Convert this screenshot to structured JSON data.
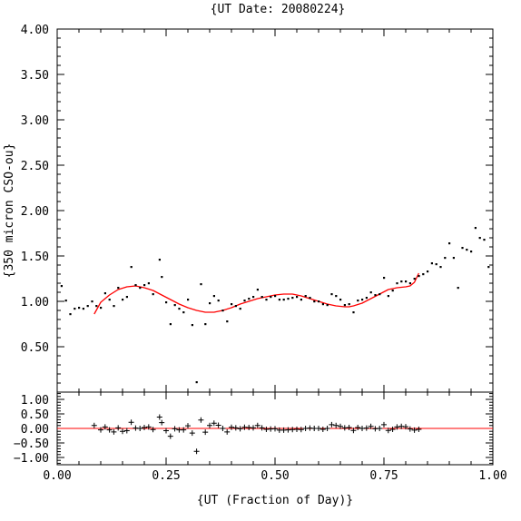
{
  "chart_data": [
    {
      "type": "scatter",
      "title": "{UT Date: 20080224}",
      "ylabel": "{350 micron CSO-ou}",
      "xlim": [
        0.0,
        1.0
      ],
      "ylim": [
        0.0,
        4.0
      ],
      "yticks": [
        "0.50",
        "1.00",
        "1.50",
        "2.00",
        "2.50",
        "3.00",
        "3.50",
        "4.00"
      ],
      "grid": false,
      "series": [
        {
          "kind": "points",
          "color": "#000000",
          "x": [
            0.01,
            0.02,
            0.03,
            0.04,
            0.05,
            0.06,
            0.07,
            0.08,
            0.09,
            0.1,
            0.11,
            0.12,
            0.13,
            0.14,
            0.15,
            0.16,
            0.17,
            0.18,
            0.19,
            0.2,
            0.21,
            0.22,
            0.235,
            0.24,
            0.25,
            0.26,
            0.27,
            0.28,
            0.29,
            0.3,
            0.31,
            0.32,
            0.33,
            0.34,
            0.35,
            0.36,
            0.37,
            0.38,
            0.39,
            0.4,
            0.41,
            0.42,
            0.43,
            0.44,
            0.45,
            0.46,
            0.47,
            0.48,
            0.49,
            0.5,
            0.51,
            0.52,
            0.53,
            0.54,
            0.55,
            0.56,
            0.57,
            0.58,
            0.59,
            0.6,
            0.61,
            0.62,
            0.63,
            0.64,
            0.65,
            0.66,
            0.67,
            0.68,
            0.69,
            0.7,
            0.71,
            0.72,
            0.73,
            0.74,
            0.75,
            0.76,
            0.77,
            0.78,
            0.79,
            0.8,
            0.81,
            0.82,
            0.83,
            0.84,
            0.85,
            0.86,
            0.87,
            0.88,
            0.89,
            0.9,
            0.91,
            0.92,
            0.93,
            0.94,
            0.95,
            0.96,
            0.97,
            0.98,
            0.99
          ],
          "y": [
            1.17,
            1.01,
            0.86,
            0.92,
            0.93,
            0.92,
            0.95,
            1.0,
            0.95,
            0.93,
            1.09,
            1.02,
            0.95,
            1.15,
            1.02,
            1.05,
            1.38,
            1.18,
            1.15,
            1.18,
            1.2,
            1.08,
            1.46,
            1.27,
            0.99,
            0.75,
            0.96,
            0.92,
            0.88,
            1.02,
            0.74,
            0.11,
            1.19,
            0.75,
            0.98,
            1.06,
            1.01,
            0.9,
            0.78,
            0.97,
            0.95,
            0.92,
            1.01,
            1.03,
            1.05,
            1.13,
            1.05,
            1.02,
            1.05,
            1.06,
            1.02,
            1.02,
            1.03,
            1.04,
            1.05,
            1.02,
            1.06,
            1.04,
            1.0,
            1.0,
            0.97,
            0.96,
            1.08,
            1.06,
            1.02,
            0.96,
            0.97,
            0.88,
            1.01,
            1.02,
            1.04,
            1.1,
            1.07,
            1.08,
            1.26,
            1.06,
            1.12,
            1.2,
            1.22,
            1.22,
            1.2,
            1.25,
            1.28,
            1.3,
            1.33,
            1.42,
            1.41,
            1.38,
            1.48,
            1.64,
            1.48,
            1.15,
            1.59,
            1.57,
            1.55,
            1.81,
            1.7,
            1.68,
            1.38
          ]
        },
        {
          "kind": "line",
          "color": "#ff0000",
          "x": [
            0.085,
            0.1,
            0.12,
            0.14,
            0.16,
            0.18,
            0.2,
            0.22,
            0.24,
            0.26,
            0.28,
            0.3,
            0.32,
            0.34,
            0.35,
            0.36,
            0.38,
            0.4,
            0.42,
            0.44,
            0.46,
            0.48,
            0.5,
            0.52,
            0.53,
            0.54,
            0.56,
            0.58,
            0.6,
            0.62,
            0.64,
            0.66,
            0.67,
            0.68,
            0.7,
            0.72,
            0.74,
            0.76,
            0.78,
            0.8,
            0.81,
            0.82,
            0.83
          ],
          "y": [
            0.86,
            0.99,
            1.07,
            1.13,
            1.16,
            1.17,
            1.15,
            1.12,
            1.07,
            1.02,
            0.97,
            0.93,
            0.9,
            0.88,
            0.88,
            0.88,
            0.9,
            0.93,
            0.97,
            1.0,
            1.03,
            1.05,
            1.07,
            1.08,
            1.08,
            1.08,
            1.06,
            1.03,
            1.0,
            0.97,
            0.95,
            0.94,
            0.94,
            0.95,
            0.98,
            1.03,
            1.08,
            1.13,
            1.15,
            1.16,
            1.17,
            1.21,
            1.31
          ]
        }
      ]
    },
    {
      "type": "scatter",
      "xlabel": "{UT (Fraction of Day)}",
      "xlim": [
        0.0,
        1.0
      ],
      "ylim": [
        -1.25,
        1.25
      ],
      "xticks": [
        "0.00",
        "0.25",
        "0.50",
        "0.75",
        "1.00"
      ],
      "yticks": [
        "−1.00",
        "−0.50",
        "0.00",
        "0.50",
        "1.00"
      ],
      "grid": false,
      "series": [
        {
          "kind": "plus",
          "color": "#000000",
          "x": [
            0.085,
            0.1,
            0.11,
            0.12,
            0.13,
            0.14,
            0.15,
            0.16,
            0.17,
            0.18,
            0.19,
            0.2,
            0.21,
            0.22,
            0.235,
            0.24,
            0.25,
            0.26,
            0.27,
            0.28,
            0.29,
            0.3,
            0.31,
            0.32,
            0.33,
            0.34,
            0.35,
            0.36,
            0.37,
            0.38,
            0.39,
            0.4,
            0.41,
            0.42,
            0.43,
            0.44,
            0.45,
            0.46,
            0.47,
            0.48,
            0.49,
            0.5,
            0.51,
            0.52,
            0.53,
            0.54,
            0.55,
            0.56,
            0.57,
            0.58,
            0.59,
            0.6,
            0.61,
            0.62,
            0.63,
            0.64,
            0.65,
            0.66,
            0.67,
            0.68,
            0.69,
            0.7,
            0.71,
            0.72,
            0.73,
            0.74,
            0.75,
            0.76,
            0.77,
            0.78,
            0.79,
            0.8,
            0.81,
            0.82,
            0.83
          ],
          "y": [
            0.1,
            -0.05,
            0.05,
            -0.05,
            -0.12,
            0.02,
            -0.1,
            -0.08,
            0.21,
            0.01,
            0.0,
            0.03,
            0.05,
            -0.04,
            0.39,
            0.2,
            -0.08,
            -0.27,
            -0.01,
            -0.05,
            -0.05,
            0.09,
            -0.16,
            -0.79,
            0.29,
            -0.13,
            0.1,
            0.18,
            0.11,
            0.0,
            -0.12,
            0.04,
            0.02,
            -0.01,
            0.04,
            0.03,
            0.02,
            0.1,
            0.02,
            -0.03,
            -0.02,
            -0.01,
            -0.06,
            -0.06,
            -0.05,
            -0.04,
            -0.03,
            -0.04,
            0.0,
            0.01,
            0.0,
            0.0,
            -0.03,
            0.0,
            0.13,
            0.1,
            0.07,
            0.02,
            0.03,
            -0.07,
            0.03,
            0.0,
            0.01,
            0.07,
            -0.01,
            0.0,
            0.13,
            -0.07,
            -0.03,
            0.05,
            0.07,
            0.06,
            -0.02,
            -0.06,
            -0.03
          ]
        },
        {
          "kind": "zero-line",
          "color": "#ff0000",
          "y": 0.0
        }
      ]
    }
  ]
}
